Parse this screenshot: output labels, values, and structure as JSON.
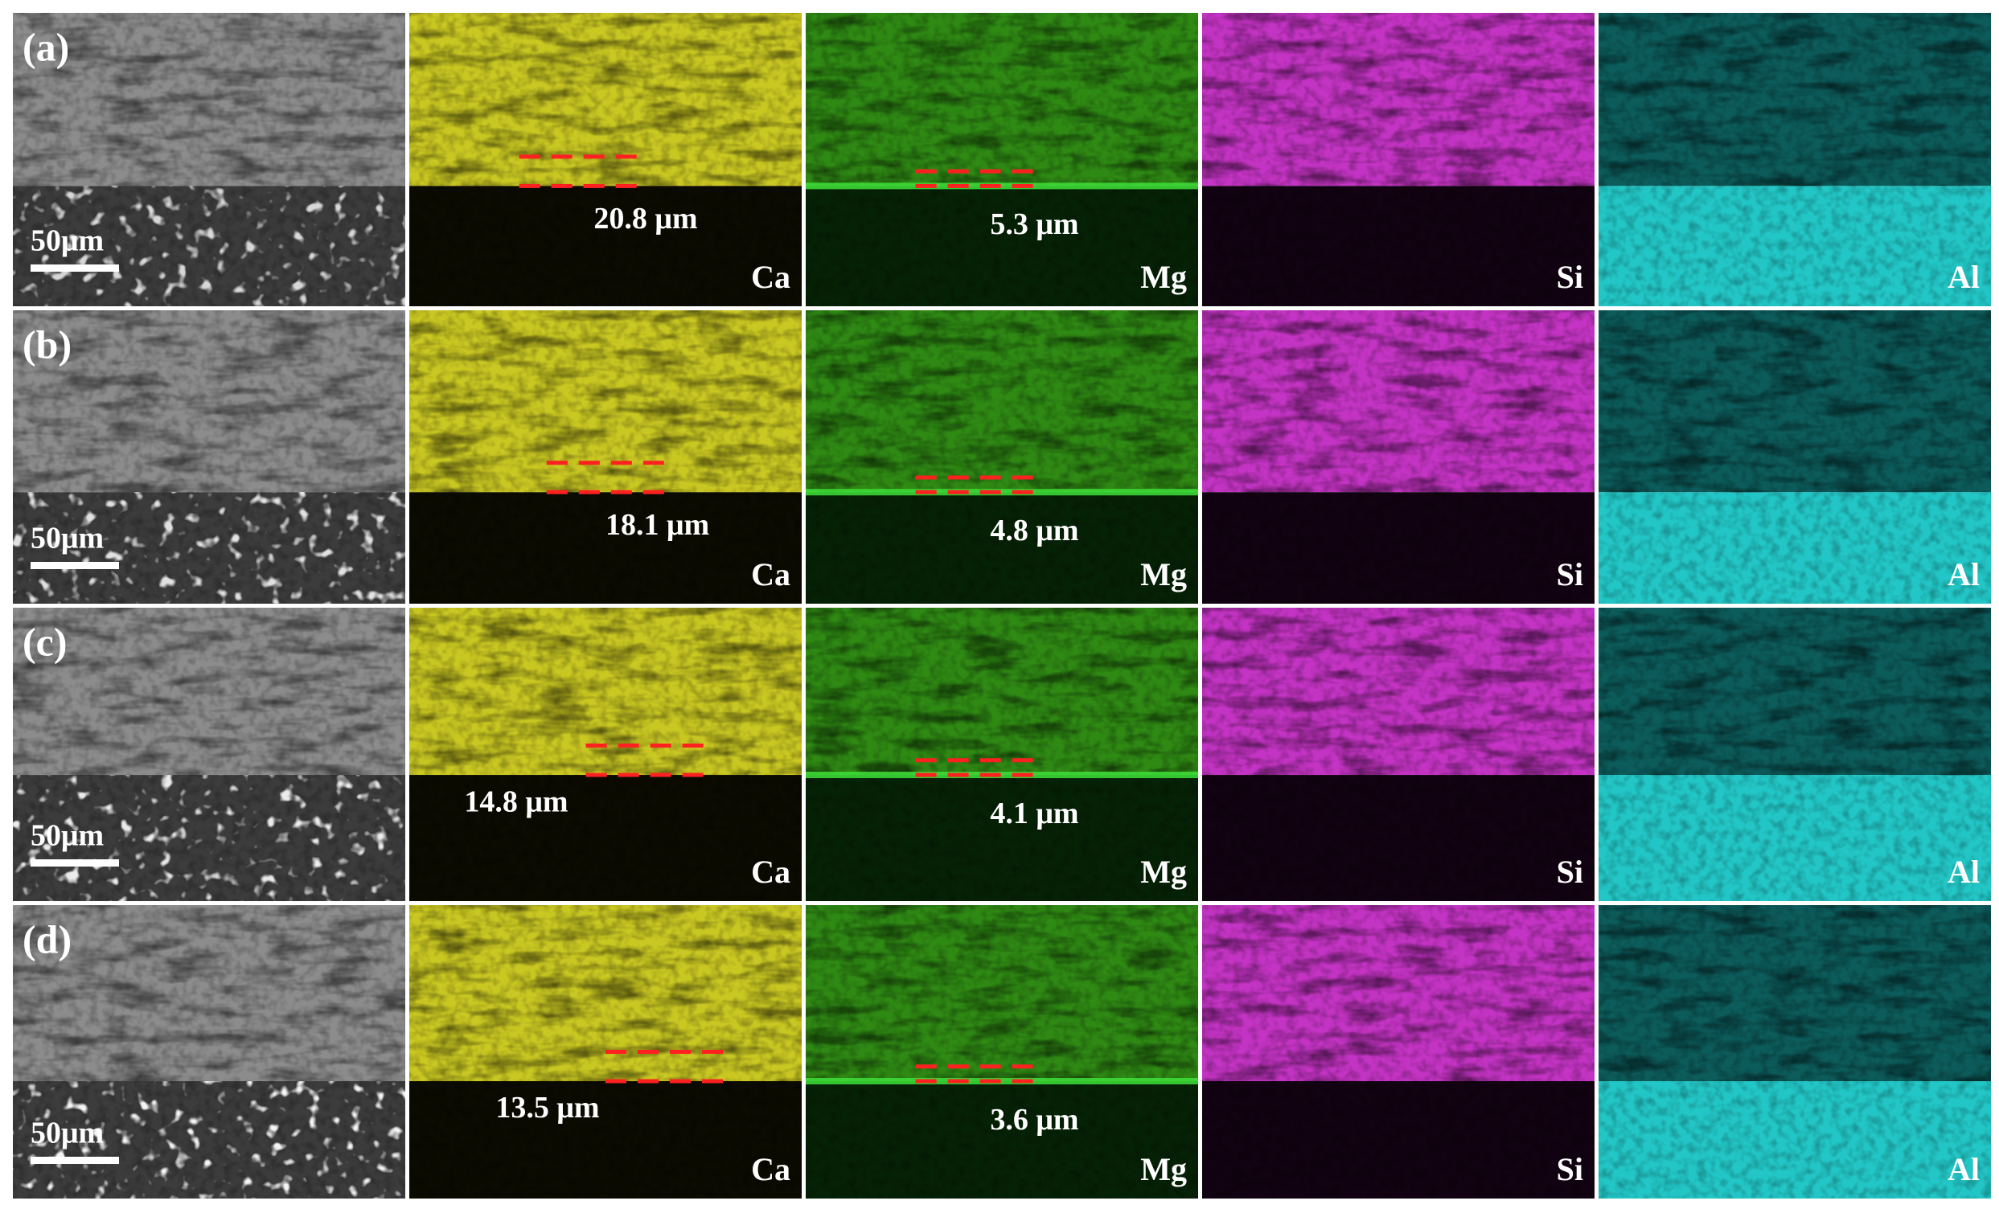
{
  "elements": [
    "Ca",
    "Mg",
    "Si",
    "Al"
  ],
  "rows": [
    {
      "label": "(a)",
      "scale_bar": "50μm",
      "ca_thickness": "20.8 μm",
      "mg_thickness": "5.3 μm"
    },
    {
      "label": "(b)",
      "scale_bar": "50μm",
      "ca_thickness": "18.1 μm",
      "mg_thickness": "4.8 μm"
    },
    {
      "label": "(c)",
      "scale_bar": "50μm",
      "ca_thickness": "14.8 μm",
      "mg_thickness": "4.1 μm"
    },
    {
      "label": "(d)",
      "scale_bar": "50μm",
      "ca_thickness": "13.5 μm",
      "mg_thickness": "3.6 μm"
    }
  ]
}
